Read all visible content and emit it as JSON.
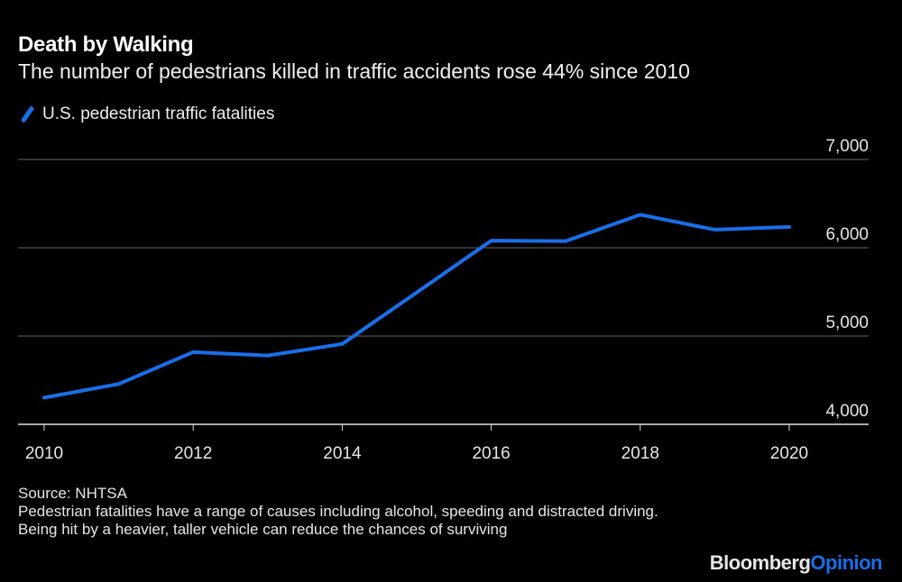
{
  "chart_data": {
    "type": "line",
    "title": "Death by Walking",
    "subtitle": "The number of pedestrians killed in traffic accidents rose 44% since 2010",
    "xlabel": "",
    "ylabel": "",
    "x": [
      2010,
      2011,
      2012,
      2013,
      2014,
      2015,
      2016,
      2017,
      2018,
      2019,
      2020
    ],
    "series": [
      {
        "name": "U.S. pedestrian traffic fatalities",
        "color": "#1a6fe8",
        "values": [
          4302,
          4457,
          4818,
          4779,
          4910,
          5494,
          6080,
          6075,
          6374,
          6205,
          6236
        ]
      }
    ],
    "xticks": [
      "2010",
      "2012",
      "2014",
      "2016",
      "2018",
      "2020"
    ],
    "yticks": [
      "4,000",
      "5,000",
      "6,000",
      "7,000"
    ],
    "xlim": [
      2010,
      2020
    ],
    "ylim": [
      4000,
      7000
    ],
    "grid": true,
    "legend_placement": "top-left",
    "y_axis_side": "right"
  },
  "footer": {
    "source": "Source: NHTSA",
    "note": "Pedestrian fatalities have a range of causes including alcohol, speeding and distracted driving. Being hit by a heavier, taller vehicle can reduce the chances of surviving"
  },
  "logo": {
    "part1": "Bloomberg",
    "part2": "Opinion"
  }
}
